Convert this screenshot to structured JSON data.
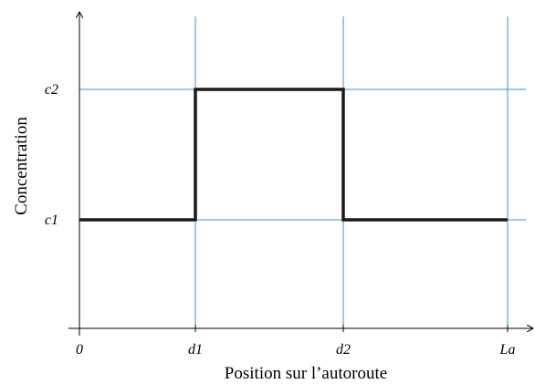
{
  "chart_data": {
    "type": "line",
    "step": true,
    "xlabel": "Position sur l’autoroute",
    "ylabel": "Concentration",
    "x_ticks": [
      {
        "label": "0",
        "value": 0
      },
      {
        "label": "d1",
        "value": 1
      },
      {
        "label": "d2",
        "value": 2
      },
      {
        "label": "La",
        "value": 3
      }
    ],
    "y_ticks": [
      {
        "label": "c1",
        "value": 1
      },
      {
        "label": "c2",
        "value": 2
      }
    ],
    "grid": true,
    "series": [
      {
        "points": [
          {
            "x": "0",
            "y": "c1"
          },
          {
            "x": "d1",
            "y": "c1"
          },
          {
            "x": "d1",
            "y": "c2"
          },
          {
            "x": "d2",
            "y": "c2"
          },
          {
            "x": "d2",
            "y": "c1"
          },
          {
            "x": "La",
            "y": "c1"
          }
        ]
      }
    ],
    "colors": {
      "grid": "#4f8fc0",
      "line": "#1a1a1a",
      "axis": "#000000"
    }
  }
}
